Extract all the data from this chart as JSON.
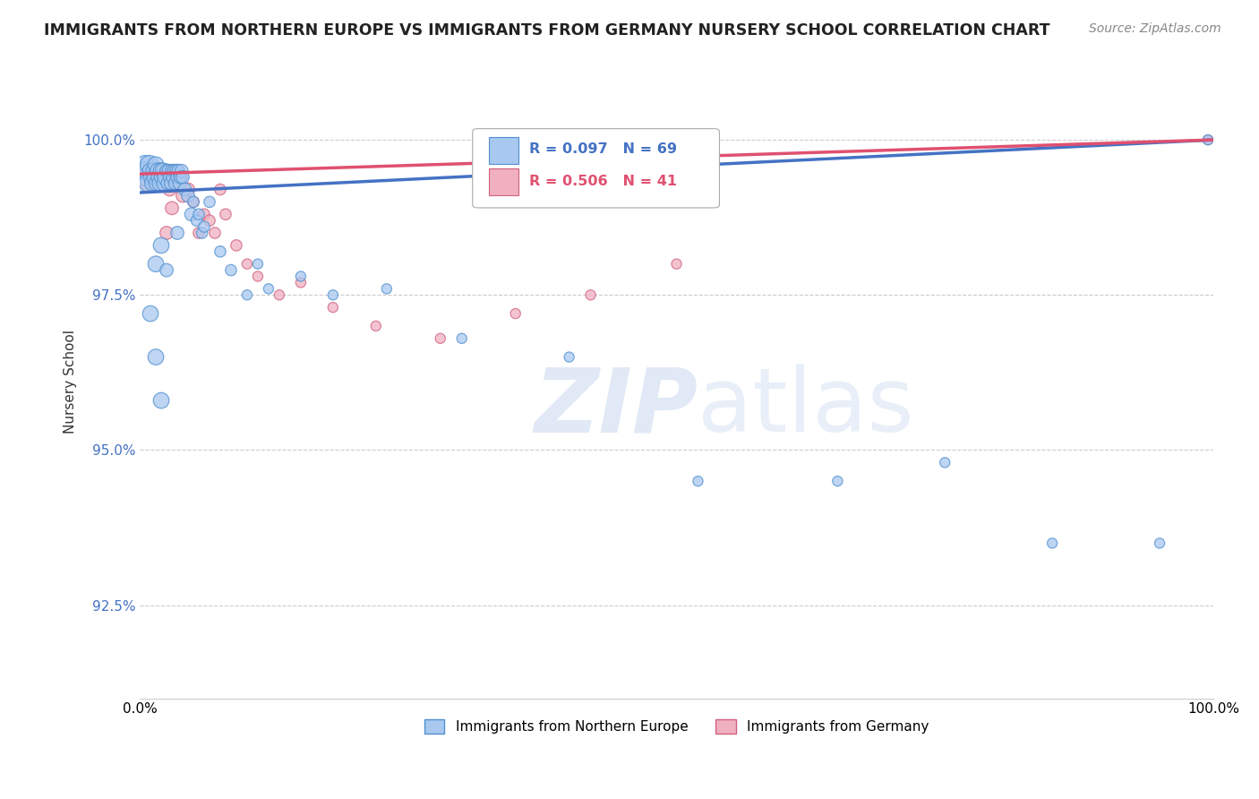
{
  "title": "IMMIGRANTS FROM NORTHERN EUROPE VS IMMIGRANTS FROM GERMANY NURSERY SCHOOL CORRELATION CHART",
  "source": "Source: ZipAtlas.com",
  "ylabel": "Nursery School",
  "xlim": [
    0,
    100
  ],
  "ylim": [
    91.0,
    101.2
  ],
  "yticks": [
    92.5,
    95.0,
    97.5,
    100.0
  ],
  "xticks": [
    0,
    100
  ],
  "xticklabels": [
    "0.0%",
    "100.0%"
  ],
  "yticklabels": [
    "92.5%",
    "95.0%",
    "97.5%",
    "100.0%"
  ],
  "legend_R_blue": "R = 0.097",
  "legend_N_blue": "N = 69",
  "legend_R_pink": "R = 0.506",
  "legend_N_pink": "N = 41",
  "legend_label_blue": "Immigrants from Northern Europe",
  "legend_label_pink": "Immigrants from Germany",
  "color_blue": "#a8c8f0",
  "color_pink": "#f0b0c0",
  "edge_blue": "#5090d0",
  "edge_pink": "#d06080",
  "trendline_blue_color": "#4472c4",
  "trendline_pink_color": "#e05070",
  "blue_trend_x0": 0,
  "blue_trend_y0": 99.15,
  "blue_trend_x1": 100,
  "blue_trend_y1": 100.0,
  "pink_trend_x0": 0,
  "pink_trend_y0": 99.45,
  "pink_trend_x1": 100,
  "pink_trend_y1": 100.0,
  "blue_x": [
    0.4,
    0.5,
    0.6,
    0.7,
    0.8,
    0.9,
    1.0,
    1.1,
    1.2,
    1.3,
    1.4,
    1.5,
    1.6,
    1.7,
    1.8,
    1.9,
    2.0,
    2.1,
    2.2,
    2.3,
    2.4,
    2.5,
    2.6,
    2.7,
    2.8,
    2.9,
    3.0,
    3.1,
    3.2,
    3.3,
    3.4,
    3.5,
    3.6,
    3.7,
    3.8,
    3.9,
    4.0,
    4.2,
    4.5,
    4.8,
    5.0,
    5.3,
    5.8,
    6.5,
    7.5,
    3.5,
    5.5,
    6.0,
    1.5,
    2.0,
    2.5,
    8.5,
    10.0,
    11.0,
    12.0,
    15.0,
    18.0,
    23.0,
    30.0,
    40.0,
    52.0,
    65.0,
    75.0,
    85.0,
    95.0,
    99.5,
    1.0,
    1.5,
    2.0
  ],
  "blue_y": [
    99.5,
    99.6,
    99.4,
    99.5,
    99.3,
    99.6,
    99.5,
    99.4,
    99.3,
    99.5,
    99.4,
    99.6,
    99.3,
    99.5,
    99.4,
    99.3,
    99.5,
    99.4,
    99.5,
    99.3,
    99.4,
    99.5,
    99.3,
    99.5,
    99.4,
    99.3,
    99.5,
    99.4,
    99.5,
    99.3,
    99.5,
    99.4,
    99.5,
    99.3,
    99.4,
    99.5,
    99.4,
    99.2,
    99.1,
    98.8,
    99.0,
    98.7,
    98.5,
    99.0,
    98.2,
    98.5,
    98.8,
    98.6,
    98.0,
    98.3,
    97.9,
    97.9,
    97.5,
    98.0,
    97.6,
    97.8,
    97.5,
    97.6,
    96.8,
    96.5,
    94.5,
    94.5,
    94.8,
    93.5,
    93.5,
    100.0,
    97.2,
    96.5,
    95.8
  ],
  "pink_x": [
    0.5,
    0.7,
    0.9,
    1.0,
    1.2,
    1.4,
    1.5,
    1.6,
    1.8,
    2.0,
    2.2,
    2.4,
    2.6,
    2.8,
    3.0,
    3.2,
    3.5,
    3.8,
    4.5,
    5.0,
    6.0,
    7.5,
    8.0,
    3.0,
    4.0,
    5.5,
    6.5,
    7.0,
    9.0,
    10.0,
    11.0,
    13.0,
    15.0,
    18.0,
    22.0,
    28.0,
    35.0,
    42.0,
    50.0,
    99.5,
    2.5
  ],
  "pink_y": [
    99.5,
    99.4,
    99.3,
    99.5,
    99.4,
    99.3,
    99.5,
    99.3,
    99.4,
    99.5,
    99.4,
    99.3,
    99.5,
    99.2,
    99.4,
    99.3,
    99.5,
    99.4,
    99.2,
    99.0,
    98.8,
    99.2,
    98.8,
    98.9,
    99.1,
    98.5,
    98.7,
    98.5,
    98.3,
    98.0,
    97.8,
    97.5,
    97.7,
    97.3,
    97.0,
    96.8,
    97.2,
    97.5,
    98.0,
    100.0,
    98.5
  ],
  "watermark_zip": "ZIP",
  "watermark_atlas": "atlas",
  "background_color": "#ffffff",
  "grid_color": "#cccccc"
}
